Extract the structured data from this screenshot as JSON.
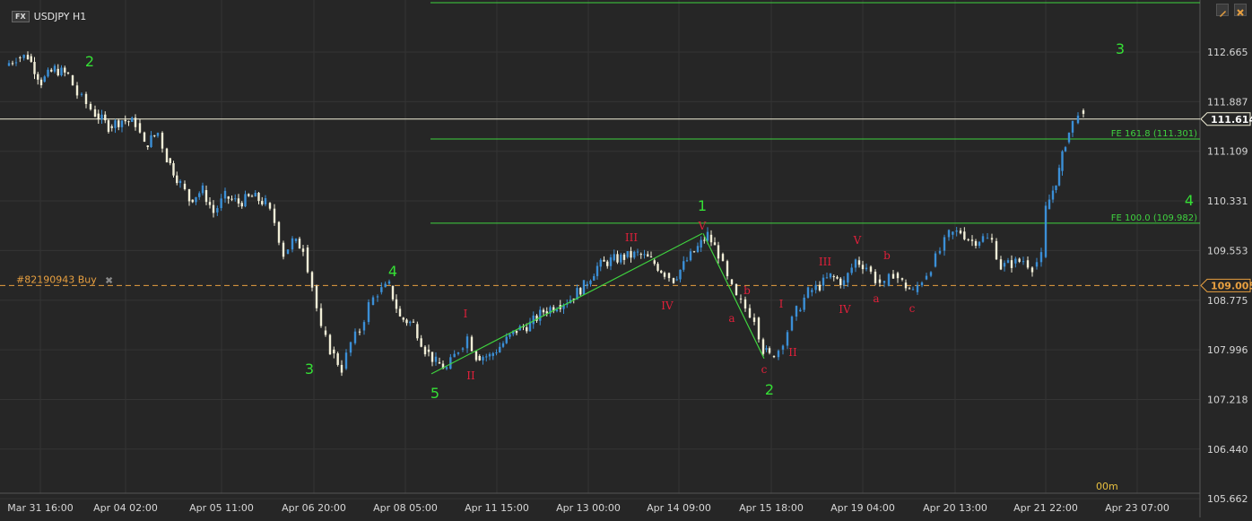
{
  "header": {
    "badge": "FX",
    "symbol": "USDJPY H1"
  },
  "toolbar": {
    "pen_icon": "pencil-icon",
    "close_icon": "close-icon"
  },
  "order": {
    "label": "#82190943 Buy",
    "price_tag": "109.005",
    "remove_icon": "close-icon"
  },
  "current_price": "111.614",
  "fibo": {
    "fe161": "FE 161.8 (111.301)",
    "fe100": "FE 100.0 (109.982)"
  },
  "timeframe_marker": "00m",
  "colors": {
    "background": "#262626",
    "grid": "#343434",
    "bull": "#3b8fd6",
    "bear": "#f2efd8",
    "fib_line": "#3fd33f",
    "order_line": "#e8a040",
    "price_line": "#f2f0d8",
    "wave_green": "#35e035",
    "wave_red": "#e0203a"
  },
  "chart_data": {
    "type": "line",
    "title": "USDJPY H1",
    "y_ticks": [
      "112.665",
      "111.887",
      "111.109",
      "110.331",
      "109.553",
      "108.775",
      "107.996",
      "107.218",
      "106.440",
      "105.662"
    ],
    "x_ticks": [
      "Mar 31 16:00",
      "Apr 04 02:00",
      "Apr 05 11:00",
      "Apr 06 20:00",
      "Apr 08 05:00",
      "Apr 11 15:00",
      "Apr 13 00:00",
      "Apr 14 09:00",
      "Apr 15 18:00",
      "Apr 19 04:00",
      "Apr 20 13:00",
      "Apr 21 22:00",
      "Apr 23 07:00"
    ],
    "ylim": [
      105.662,
      113.3
    ],
    "grid": true,
    "horizontal_lines": [
      {
        "name": "FE 161.8",
        "value": 111.301
      },
      {
        "name": "FE 100.0",
        "value": 109.982
      },
      {
        "name": "order",
        "value": 109.005
      },
      {
        "name": "current",
        "value": 111.614
      }
    ],
    "price_path": [
      [
        0,
        112.45
      ],
      [
        12,
        112.58
      ],
      [
        25,
        112.6
      ],
      [
        40,
        112.2
      ],
      [
        55,
        112.4
      ],
      [
        70,
        112.3
      ],
      [
        80,
        112.0
      ],
      [
        90,
        111.85
      ],
      [
        100,
        111.7
      ],
      [
        115,
        111.5
      ],
      [
        130,
        111.6
      ],
      [
        145,
        111.55
      ],
      [
        155,
        111.2
      ],
      [
        170,
        111.4
      ],
      [
        180,
        111.0
      ],
      [
        195,
        110.6
      ],
      [
        205,
        110.35
      ],
      [
        220,
        110.5
      ],
      [
        232,
        110.15
      ],
      [
        245,
        110.4
      ],
      [
        260,
        110.3
      ],
      [
        275,
        110.4
      ],
      [
        290,
        110.3
      ],
      [
        300,
        110.0
      ],
      [
        310,
        109.5
      ],
      [
        320,
        109.7
      ],
      [
        332,
        109.6
      ],
      [
        342,
        109.0
      ],
      [
        352,
        108.3
      ],
      [
        362,
        108.0
      ],
      [
        375,
        107.7
      ],
      [
        385,
        108.1
      ],
      [
        395,
        108.3
      ],
      [
        405,
        108.7
      ],
      [
        415,
        108.9
      ],
      [
        428,
        109.0
      ],
      [
        440,
        108.5
      ],
      [
        455,
        108.4
      ],
      [
        468,
        108.0
      ],
      [
        480,
        107.8
      ],
      [
        492,
        107.7
      ],
      [
        505,
        108.0
      ],
      [
        515,
        108.2
      ],
      [
        525,
        107.9
      ],
      [
        540,
        107.9
      ],
      [
        555,
        108.1
      ],
      [
        570,
        108.3
      ],
      [
        585,
        108.4
      ],
      [
        600,
        108.6
      ],
      [
        615,
        108.7
      ],
      [
        630,
        108.8
      ],
      [
        645,
        109.0
      ],
      [
        660,
        109.3
      ],
      [
        675,
        109.4
      ],
      [
        690,
        109.45
      ],
      [
        705,
        109.5
      ],
      [
        720,
        109.4
      ],
      [
        735,
        109.2
      ],
      [
        745,
        109.1
      ],
      [
        760,
        109.4
      ],
      [
        772,
        109.6
      ],
      [
        783,
        109.8
      ],
      [
        795,
        109.5
      ],
      [
        805,
        109.1
      ],
      [
        815,
        108.8
      ],
      [
        825,
        108.65
      ],
      [
        835,
        108.5
      ],
      [
        845,
        108.0
      ],
      [
        852,
        107.9
      ],
      [
        862,
        108.0
      ],
      [
        872,
        108.3
      ],
      [
        882,
        108.6
      ],
      [
        895,
        108.9
      ],
      [
        908,
        109.0
      ],
      [
        920,
        109.15
      ],
      [
        935,
        109.05
      ],
      [
        948,
        109.4
      ],
      [
        960,
        109.3
      ],
      [
        970,
        109.1
      ],
      [
        980,
        109.0
      ],
      [
        990,
        109.2
      ],
      [
        1000,
        109.05
      ],
      [
        1012,
        108.9
      ],
      [
        1022,
        109.1
      ],
      [
        1032,
        109.3
      ],
      [
        1042,
        109.55
      ],
      [
        1052,
        109.8
      ],
      [
        1065,
        109.85
      ],
      [
        1078,
        109.7
      ],
      [
        1090,
        109.75
      ],
      [
        1100,
        109.7
      ],
      [
        1110,
        109.3
      ],
      [
        1122,
        109.35
      ],
      [
        1135,
        109.4
      ],
      [
        1145,
        109.3
      ],
      [
        1155,
        109.45
      ],
      [
        1160,
        110.2
      ],
      [
        1168,
        110.5
      ],
      [
        1175,
        110.8
      ],
      [
        1182,
        111.25
      ],
      [
        1190,
        111.55
      ],
      [
        1196,
        111.75
      ],
      [
        1202,
        111.61
      ]
    ]
  },
  "wave_labels": [
    {
      "text": "2",
      "color": "green"
    },
    {
      "text": "3",
      "color": "green"
    },
    {
      "text": "4",
      "color": "green"
    },
    {
      "text": "5",
      "color": "green"
    },
    {
      "text": "1",
      "color": "green"
    },
    {
      "text": "2",
      "color": "green"
    },
    {
      "text": "3",
      "color": "green"
    },
    {
      "text": "4",
      "color": "green"
    },
    {
      "text": "I",
      "color": "red"
    },
    {
      "text": "II",
      "color": "red"
    },
    {
      "text": "III",
      "color": "red"
    },
    {
      "text": "IV",
      "color": "red"
    },
    {
      "text": "V",
      "color": "red"
    },
    {
      "text": "a",
      "color": "red"
    },
    {
      "text": "b",
      "color": "red"
    },
    {
      "text": "c",
      "color": "red"
    },
    {
      "text": "I",
      "color": "red"
    },
    {
      "text": "II",
      "color": "red"
    },
    {
      "text": "III",
      "color": "red"
    },
    {
      "text": "IV",
      "color": "red"
    },
    {
      "text": "V",
      "color": "red"
    },
    {
      "text": "a",
      "color": "red"
    },
    {
      "text": "b",
      "color": "red"
    },
    {
      "text": "c",
      "color": "red"
    }
  ]
}
